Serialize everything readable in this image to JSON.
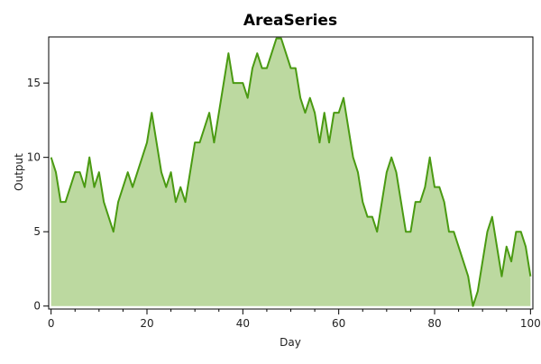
{
  "chart_data": {
    "type": "area",
    "title": "AreaSeries",
    "xlabel": "Day",
    "ylabel": "Output",
    "xlim": [
      -0.5,
      100.5
    ],
    "ylim": [
      -0.2,
      18.1
    ],
    "xticks": [
      0,
      20,
      40,
      60,
      80,
      100
    ],
    "xticks_minor": [
      5,
      10,
      15,
      25,
      30,
      35,
      45,
      50,
      55,
      65,
      70,
      75,
      85,
      90,
      95
    ],
    "yticks": [
      0,
      5,
      10,
      15
    ],
    "grid": false,
    "legend": "none",
    "colors": {
      "line": "#4a9a12",
      "fill": "#bcd9a0"
    },
    "x": [
      0,
      1,
      2,
      3,
      4,
      5,
      6,
      7,
      8,
      9,
      10,
      11,
      12,
      13,
      14,
      15,
      16,
      17,
      18,
      19,
      20,
      21,
      22,
      23,
      24,
      25,
      26,
      27,
      28,
      29,
      30,
      31,
      32,
      33,
      34,
      35,
      36,
      37,
      38,
      39,
      40,
      41,
      42,
      43,
      44,
      45,
      46,
      47,
      48,
      49,
      50,
      51,
      52,
      53,
      54,
      55,
      56,
      57,
      58,
      59,
      60,
      61,
      62,
      63,
      64,
      65,
      66,
      67,
      68,
      69,
      70,
      71,
      72,
      73,
      74,
      75,
      76,
      77,
      78,
      79,
      80,
      81,
      82,
      83,
      84,
      85,
      86,
      87,
      88,
      89,
      90,
      91,
      92,
      93,
      94,
      95,
      96,
      97,
      98,
      99,
      100
    ],
    "y": [
      10,
      9,
      7,
      7,
      8,
      9,
      9,
      8,
      10,
      8,
      9,
      7,
      6,
      5,
      7,
      8,
      9,
      8,
      9,
      10,
      11,
      13,
      11,
      9,
      8,
      9,
      7,
      8,
      7,
      9,
      11,
      11,
      12,
      13,
      11,
      13,
      15,
      17,
      15,
      15,
      15,
      14,
      16,
      17,
      16,
      16,
      17,
      18,
      18,
      17,
      16,
      16,
      14,
      13,
      14,
      13,
      11,
      13,
      11,
      13,
      13,
      14,
      12,
      10,
      9,
      7,
      6,
      6,
      5,
      7,
      9,
      10,
      9,
      7,
      5,
      5,
      7,
      7,
      8,
      10,
      8,
      8,
      7,
      5,
      5,
      4,
      3,
      2,
      0,
      1,
      3,
      5,
      6,
      4,
      2,
      4,
      3,
      5,
      5,
      4,
      2
    ]
  }
}
